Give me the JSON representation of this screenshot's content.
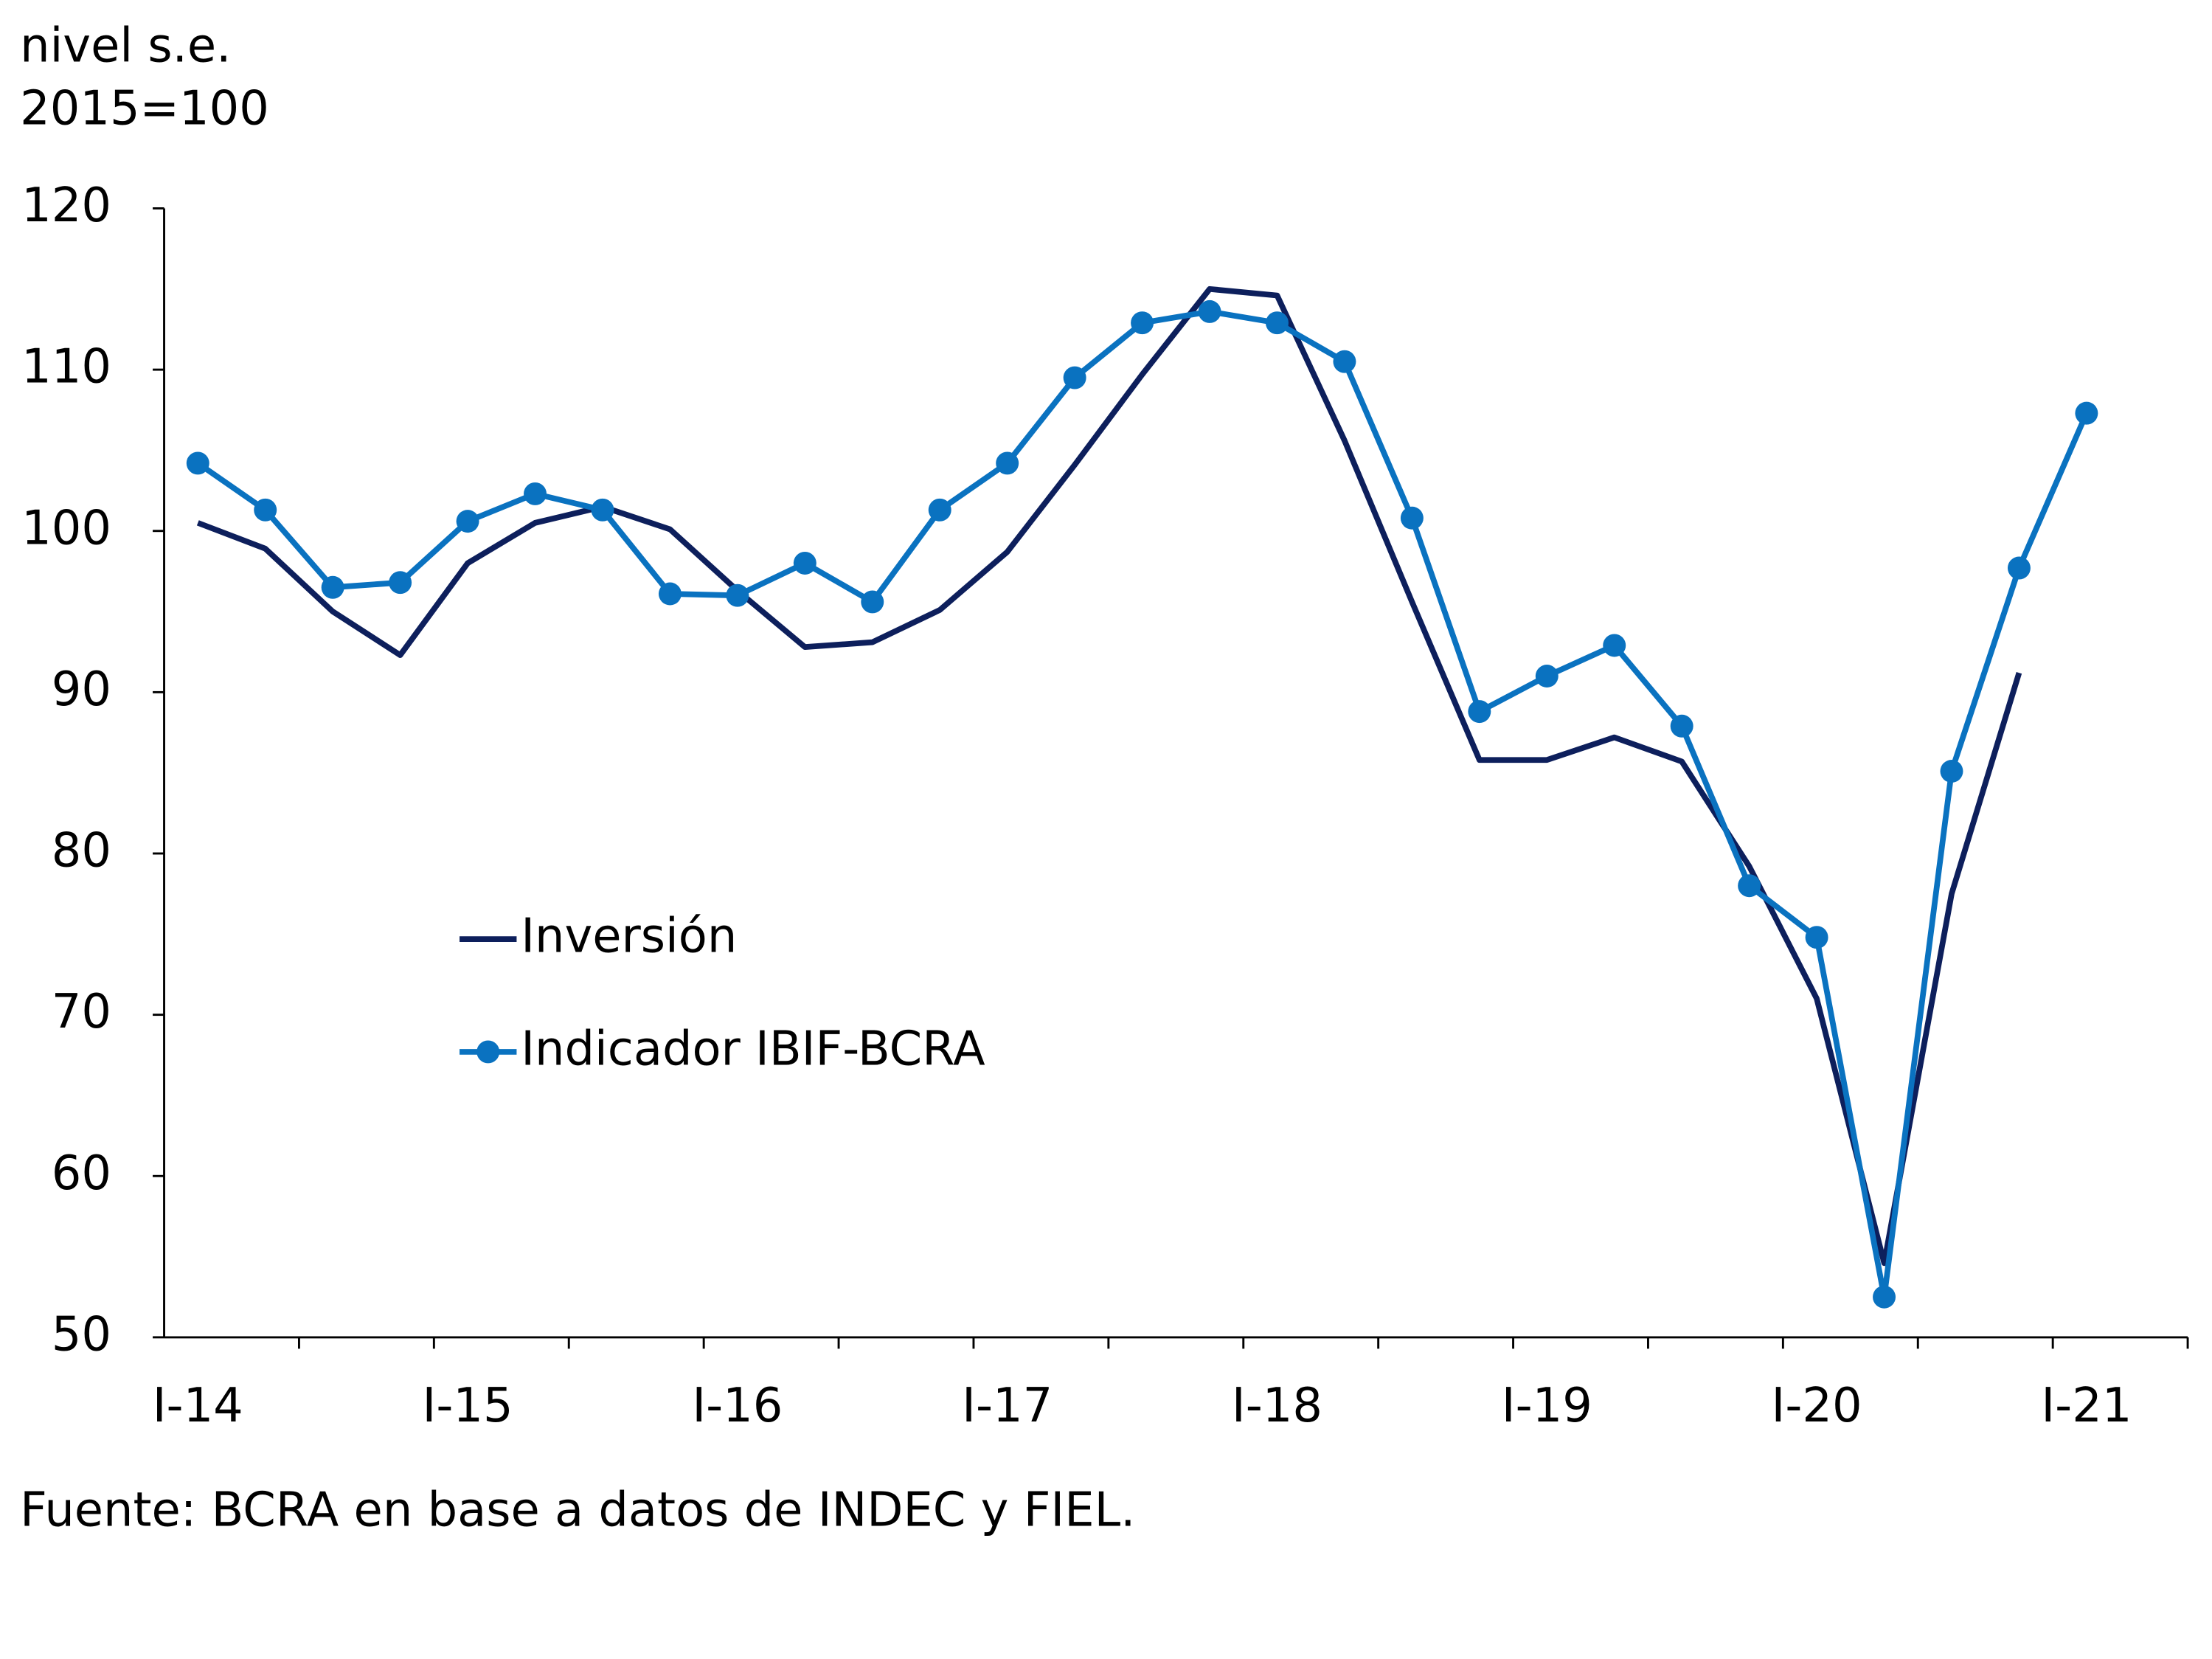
{
  "chart_data": {
    "type": "line",
    "y_label_lines": [
      "nivel s.e.",
      "2015=100"
    ],
    "source": "Fuente: BCRA en base a datos de INDEC y FIEL.",
    "categories": [
      "I-14",
      null,
      null,
      null,
      "I-15",
      null,
      null,
      null,
      "I-16",
      null,
      null,
      null,
      "I-17",
      null,
      null,
      null,
      "I-18",
      null,
      null,
      null,
      "I-19",
      null,
      null,
      null,
      "I-20",
      null,
      null,
      null,
      "I-21",
      null
    ],
    "series": [
      {
        "name": "Inversión",
        "color": "#0d1f5c",
        "markers": false,
        "values": [
          100.5,
          98.9,
          95.0,
          92.3,
          98.0,
          100.5,
          101.5,
          100.1,
          96.3,
          92.8,
          93.1,
          95.1,
          98.7,
          104.1,
          109.7,
          115.0,
          114.6,
          105.6,
          95.6,
          85.8,
          85.8,
          87.2,
          85.7,
          79.2,
          71.0,
          54.6,
          77.5,
          91.2,
          null,
          null
        ]
      },
      {
        "name": "Indicador IBIF-BCRA",
        "color": "#0a72c0",
        "markers": true,
        "values": [
          104.2,
          101.3,
          96.5,
          96.8,
          100.6,
          102.3,
          101.3,
          96.1,
          96.0,
          98.0,
          95.6,
          101.3,
          104.2,
          109.5,
          112.9,
          113.6,
          112.9,
          110.5,
          100.8,
          88.8,
          91.0,
          92.9,
          87.9,
          78.0,
          74.8,
          52.5,
          85.1,
          97.7,
          107.3,
          null
        ]
      }
    ],
    "ylim": [
      50,
      120
    ],
    "yticks": [
      50,
      60,
      70,
      80,
      90,
      100,
      110,
      120
    ],
    "grid": false
  }
}
